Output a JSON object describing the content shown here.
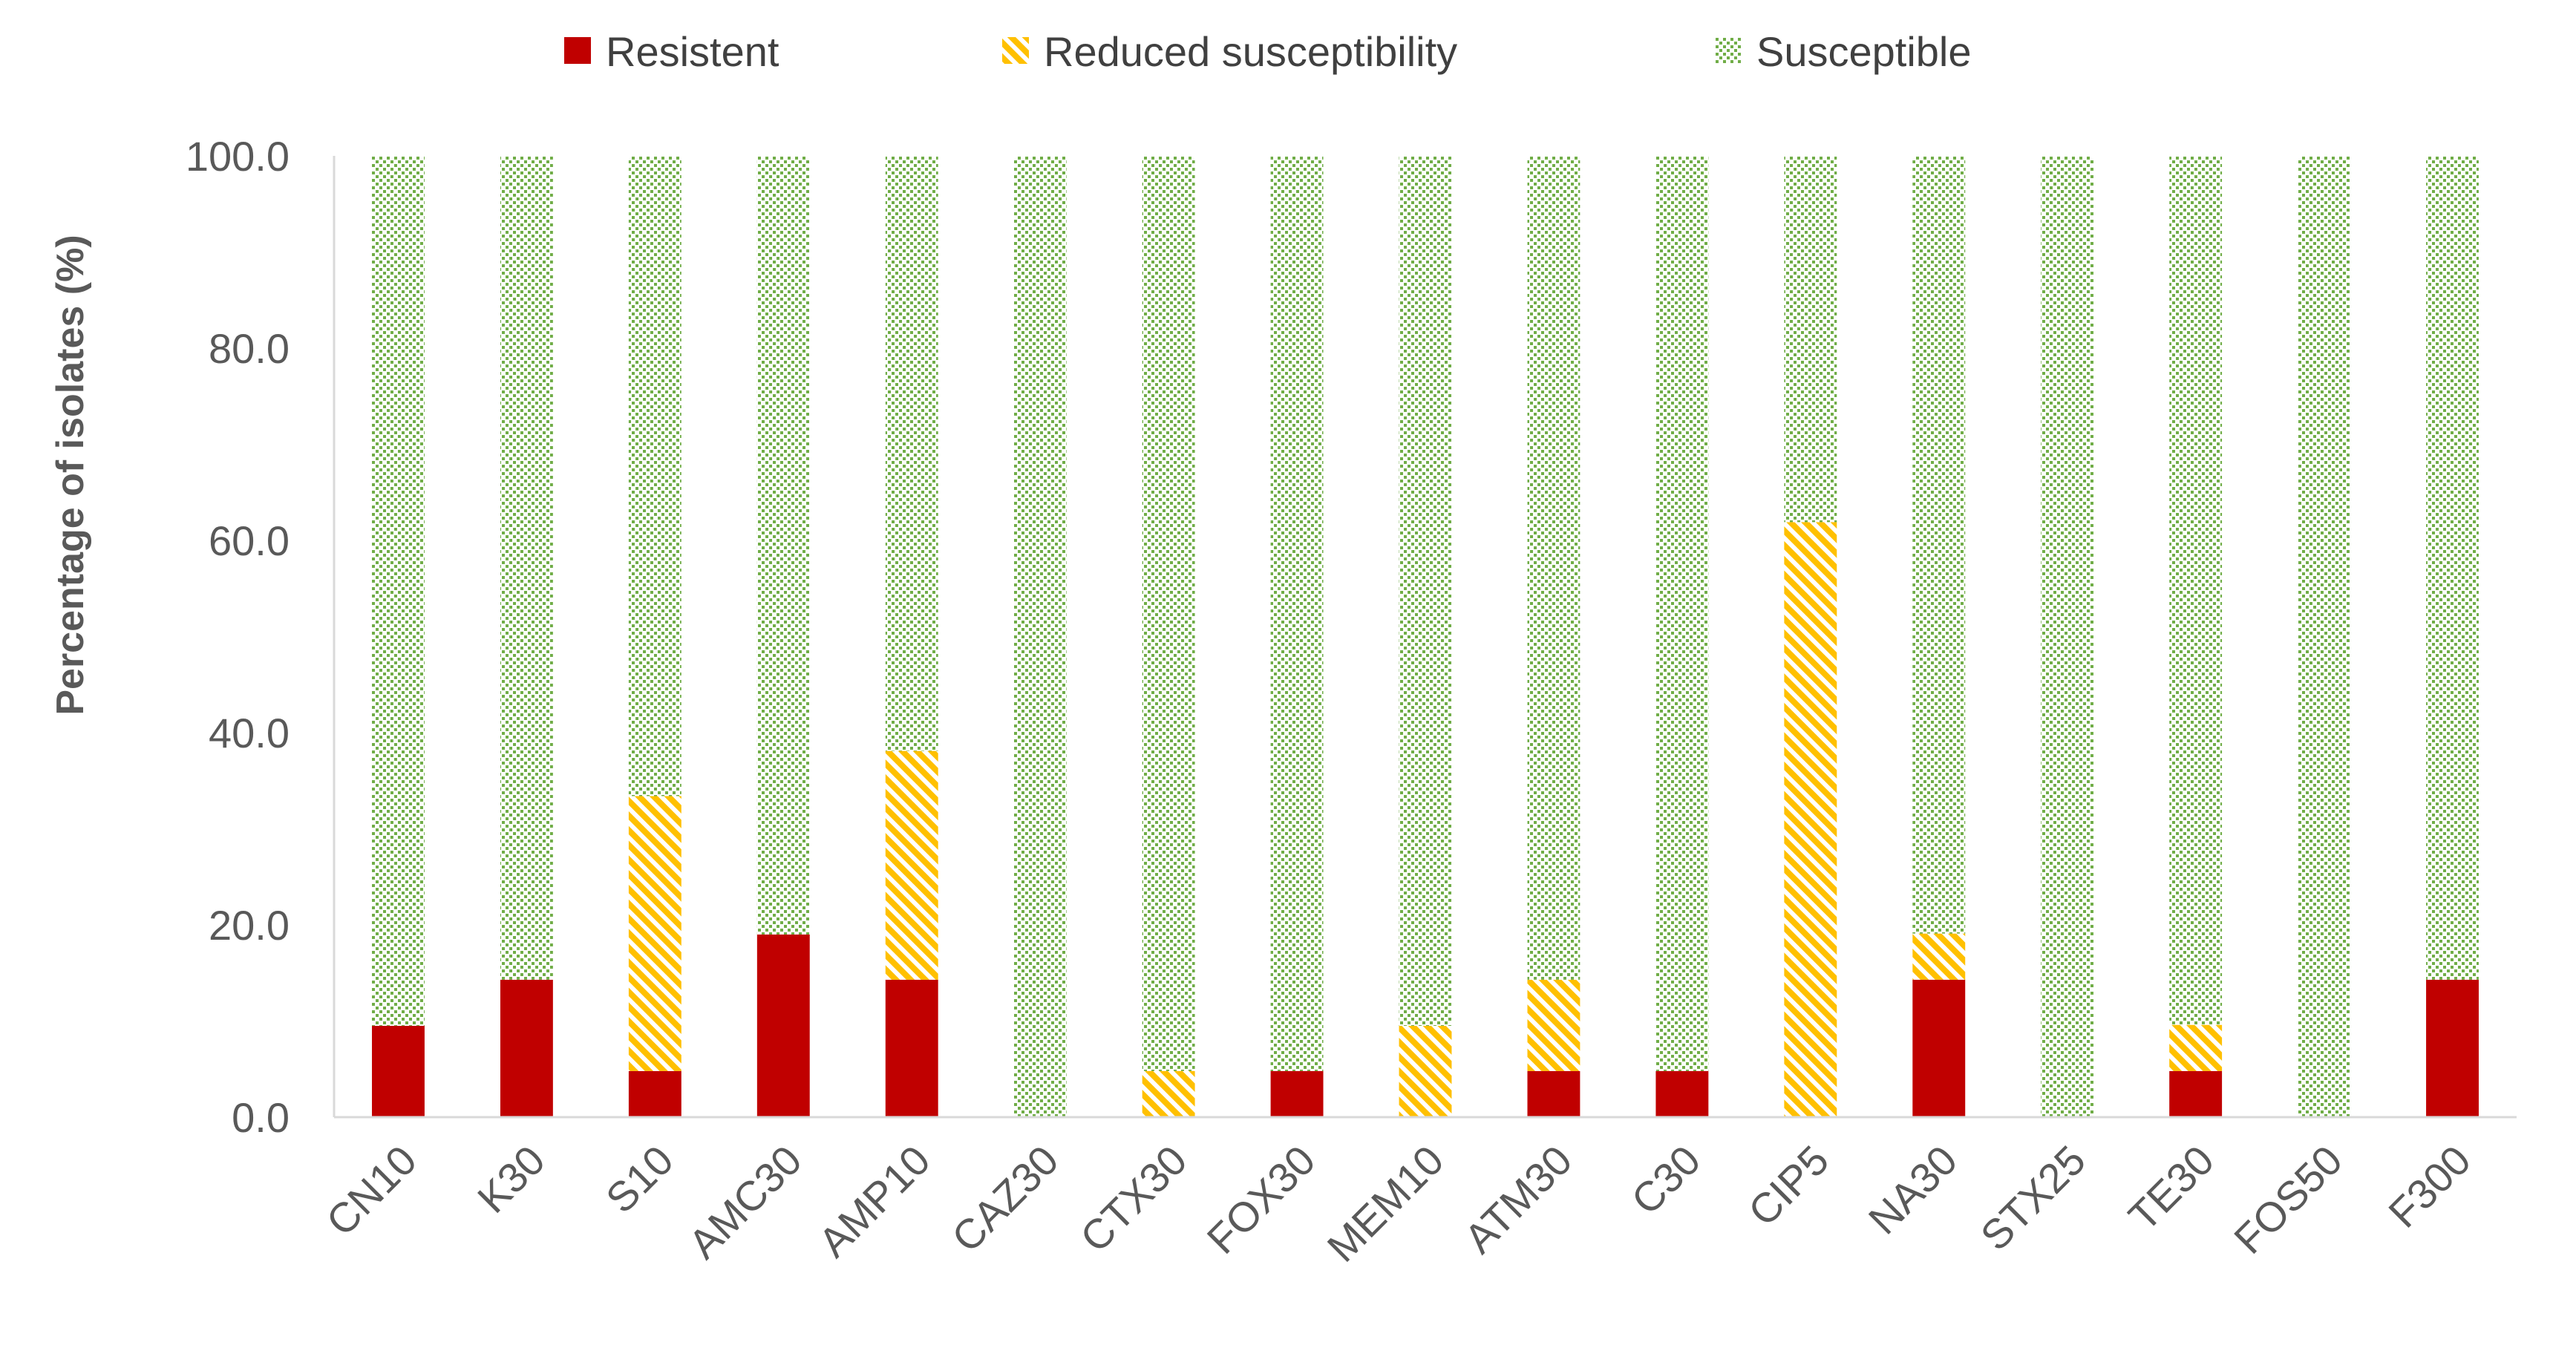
{
  "chart_data": {
    "type": "bar",
    "stacked": true,
    "title": "",
    "xlabel": "",
    "ylabel": "Percentage of isolates (%)",
    "ylim": [
      0,
      100
    ],
    "yticks": [
      0,
      20,
      40,
      60,
      80,
      100
    ],
    "ytick_labels": [
      "0.0",
      "20.0",
      "40.0",
      "60.0",
      "80.0",
      "100.0"
    ],
    "grid": false,
    "legend_position": "top",
    "categories": [
      "CN10",
      "K30",
      "S10",
      "AMC30",
      "AMP10",
      "CAZ30",
      "CTX30",
      "FOX30",
      "MEM10",
      "ATM30",
      "C30",
      "CIP5",
      "NA30",
      "STX25",
      "TE30",
      "FOS50",
      "F300"
    ],
    "series": [
      {
        "name": "Resistent",
        "color": "#c00000",
        "pattern": "solid",
        "values": [
          9.5,
          14.3,
          4.8,
          19.0,
          14.3,
          0,
          0,
          4.8,
          0,
          4.8,
          4.8,
          0,
          14.3,
          0,
          4.8,
          0,
          14.3
        ]
      },
      {
        "name": "Reduced susceptibility",
        "color": "#ffc000",
        "pattern": "diagonal-hatch",
        "values": [
          0,
          0,
          28.6,
          0,
          23.8,
          0,
          4.8,
          0,
          9.5,
          9.5,
          0,
          61.9,
          4.8,
          0,
          4.8,
          0,
          0
        ]
      },
      {
        "name": "Susceptible",
        "color": "#70ad47",
        "pattern": "dots",
        "values": [
          90.5,
          85.7,
          66.6,
          81.0,
          61.9,
          100,
          95.2,
          95.2,
          90.5,
          85.7,
          95.2,
          38.1,
          80.9,
          100,
          90.4,
          100,
          85.7
        ]
      }
    ]
  }
}
